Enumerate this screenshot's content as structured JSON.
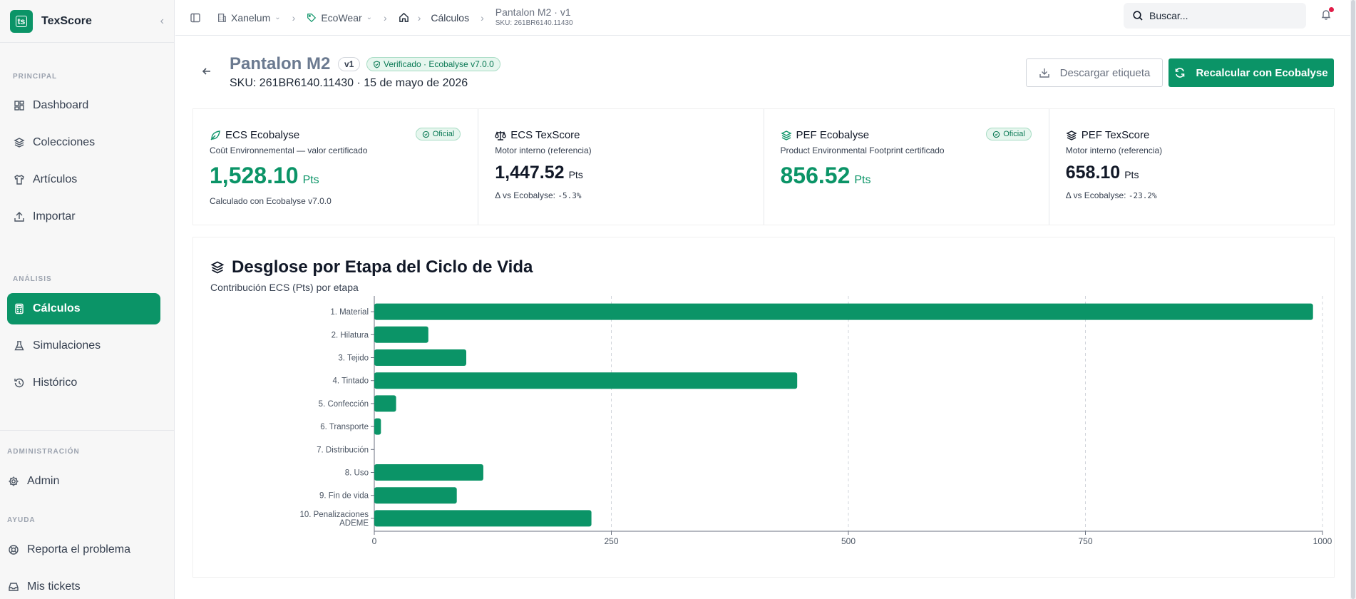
{
  "app": {
    "name": "TexScore",
    "logo_text": "ts"
  },
  "sidebar": {
    "sections": {
      "principal": "PRINCIPAL",
      "analisis": "ANÁLISIS",
      "administracion": "ADMINISTRACIÓN",
      "ayuda": "AYUDA"
    },
    "items": [
      {
        "label": "Dashboard",
        "icon": "dashboard-icon"
      },
      {
        "label": "Colecciones",
        "icon": "layers-icon"
      },
      {
        "label": "Artículos",
        "icon": "shirt-icon"
      },
      {
        "label": "Importar",
        "icon": "upload-icon"
      },
      {
        "label": "Cálculos",
        "icon": "calculator-icon",
        "active": true
      },
      {
        "label": "Simulaciones",
        "icon": "flask-icon"
      },
      {
        "label": "Histórico",
        "icon": "history-icon"
      },
      {
        "label": "Admin",
        "icon": "gear-icon"
      },
      {
        "label": "Reporta el problema",
        "icon": "help-circle-icon"
      },
      {
        "label": "Mis tickets",
        "icon": "inbox-icon"
      }
    ]
  },
  "topbar": {
    "breadcrumb": {
      "org": "Xanelum",
      "brand": "EcoWear",
      "section": "Cálculos",
      "current_title": "Pantalon M2 · v1",
      "current_sku": "SKU: 261BR6140.11430"
    },
    "search_placeholder": "Buscar..."
  },
  "header": {
    "title": "Pantalon M2",
    "version": "v1",
    "verified": "Verificado · Ecobalyse v7.0.0",
    "sku_date": "SKU: 261BR6140.11430 · 15 de mayo de 2026",
    "download_label": "Descargar etiqueta",
    "recalc_label": "Recalcular con Ecobalyse"
  },
  "kpis": [
    {
      "title": "ECS Ecobalyse",
      "subtitle": "Coût Environnemental — valor certificado",
      "value": "1,528.10",
      "unit": "Pts",
      "foot": "Calculado con Ecobalyse v7.0.0",
      "badge": "Oficial"
    },
    {
      "title": "ECS TexScore",
      "subtitle": "Motor interno (referencia)",
      "value": "1,447.52",
      "unit": "Pts",
      "foot_label": "Δ vs Ecobalyse:",
      "foot_delta": "-5.3%"
    },
    {
      "title": "PEF Ecobalyse",
      "subtitle": "Product Environmental Footprint certificado",
      "value": "856.52",
      "unit": "Pts",
      "badge": "Oficial"
    },
    {
      "title": "PEF TexScore",
      "subtitle": "Motor interno (referencia)",
      "value": "658.10",
      "unit": "Pts",
      "foot_label": "Δ vs Ecobalyse:",
      "foot_delta": "-23.2%"
    }
  ],
  "chart_section": {
    "title": "Desglose por Etapa del Ciclo de Vida",
    "subtitle": "Contribución ECS (Pts) por etapa"
  },
  "chart_data": {
    "type": "bar",
    "orientation": "horizontal",
    "categories": [
      "1. Material",
      "2. Hilatura",
      "3. Tejido",
      "4. Tintado",
      "5. Confección",
      "6. Transporte",
      "7. Distribución",
      "8. Uso",
      "9. Fin de vida",
      "10. Penalizaciones ADEME"
    ],
    "values": [
      990,
      57,
      97,
      446,
      23,
      7,
      0,
      115,
      87,
      229
    ],
    "xlim": [
      0,
      1000
    ],
    "xticks": [
      0,
      250,
      500,
      750,
      1000
    ],
    "grid": "vertical dashed",
    "color": "#0b9467"
  }
}
